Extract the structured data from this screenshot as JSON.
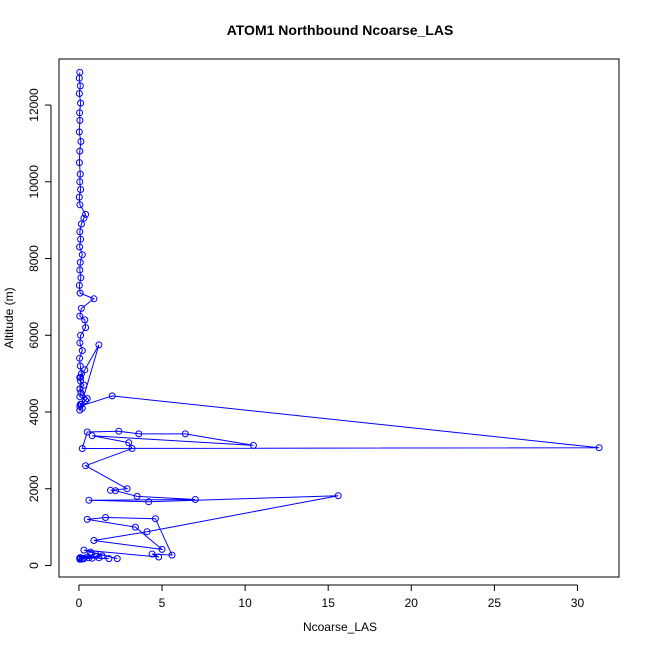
{
  "chart_data": {
    "type": "line",
    "title": "ATOM1 Northbound Ncoarse_LAS",
    "xlabel": "Ncoarse_LAS",
    "ylabel": "Altitude (m)",
    "xlim": [
      -1.2,
      32.5
    ],
    "ylim": [
      -300,
      13200
    ],
    "xticks": [
      0,
      5,
      10,
      15,
      20,
      25,
      30
    ],
    "xtick_labels": [
      "0",
      "5",
      "10",
      "15",
      "20",
      "25",
      "30"
    ],
    "yticks": [
      0,
      2000,
      4000,
      6000,
      8000,
      10000,
      12000
    ],
    "ytick_labels": [
      "0",
      "2000",
      "4000",
      "6000",
      "8000",
      "10000",
      "12000"
    ],
    "grid": false,
    "marker": "open-circle",
    "color": "#0000ff",
    "series": [
      {
        "x": [
          0.05,
          0.02,
          0.08,
          0.03,
          0.1,
          0.04,
          0.06,
          0.02,
          0.12,
          0.05,
          0.03,
          0.08,
          0.05,
          0.1,
          0.02,
          0.06,
          0.4,
          0.3,
          0.15,
          0.05,
          0.1,
          0.04,
          0.2,
          0.08,
          0.05,
          0.12,
          0.03,
          0.07,
          0.9,
          0.15,
          0.05,
          0.35,
          0.4,
          0.1,
          0.06,
          0.2,
          0.04,
          0.08,
          0.15,
          0.05,
          0.1,
          0.3,
          0.06,
          0.12,
          0.05,
          0.4,
          0.08,
          0.2,
          0.05,
          1.2,
          0.35,
          0.1,
          0.06,
          0.5,
          0.15,
          0.05,
          2.0,
          31.3,
          0.2,
          0.5,
          2.4,
          3.6,
          6.4,
          10.5,
          0.8,
          3.0,
          3.2,
          0.4,
          2.9,
          1.9,
          2.2,
          3.5,
          7.0,
          0.6,
          4.2,
          15.6,
          4.1,
          0.9,
          5.0,
          3.4,
          0.5,
          1.6,
          4.6,
          5.6,
          4.4,
          4.8,
          0.3,
          2.3,
          0.7,
          0.05,
          1.4,
          0.2,
          1.0,
          0.1,
          1.8,
          0.6,
          0.3,
          1.2,
          0.05,
          0.8,
          0.2,
          0.05
        ],
        "y": [
          12850,
          12700,
          12500,
          12300,
          12050,
          11800,
          11600,
          11300,
          11050,
          10800,
          10500,
          10200,
          10000,
          9800,
          9600,
          9400,
          9150,
          9050,
          8900,
          8700,
          8500,
          8300,
          8100,
          7900,
          7700,
          7500,
          7300,
          7100,
          6950,
          6700,
          6500,
          6400,
          6200,
          6000,
          5800,
          5600,
          5400,
          5200,
          5000,
          4900,
          4800,
          4700,
          4600,
          4500,
          4400,
          4300,
          4200,
          4100,
          4050,
          5750,
          5100,
          4900,
          4600,
          4350,
          4200,
          4150,
          4420,
          3070,
          3050,
          3480,
          3500,
          3430,
          3430,
          3130,
          3380,
          3200,
          3050,
          2600,
          2000,
          1960,
          1950,
          1800,
          1720,
          1700,
          1660,
          1820,
          880,
          650,
          420,
          1000,
          1200,
          1250,
          1220,
          270,
          300,
          220,
          400,
          180,
          350,
          200,
          250,
          180,
          300,
          200,
          180,
          200,
          180,
          200,
          180,
          190,
          170,
          160
        ]
      }
    ]
  }
}
